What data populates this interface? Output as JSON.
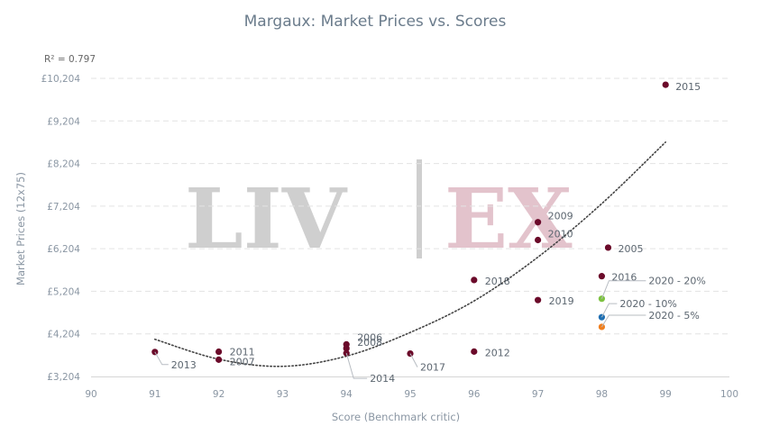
{
  "chart_data": {
    "type": "scatter",
    "title": "Margaux: Market Prices vs. Scores",
    "xlabel": "Score (Benchmark critic)",
    "ylabel": "Market Prices (12x75)",
    "annotation": "R² = 0.797",
    "watermark": {
      "left": "LIV",
      "right": "EX"
    },
    "xlim": [
      90,
      100
    ],
    "ylim": [
      3204,
      10204
    ],
    "xticks": [
      "90",
      "91",
      "92",
      "93",
      "94",
      "95",
      "96",
      "97",
      "98",
      "99",
      "100"
    ],
    "yticks": [
      "£3,204",
      "£4,204",
      "£5,204",
      "£6,204",
      "£7,204",
      "£8,204",
      "£9,204",
      "£10,204"
    ],
    "grid": true,
    "colors": {
      "point": "#6b0a2a",
      "trend": "#444444",
      "grid": "#e3e3e3",
      "watermark_left": "#cfcfcf",
      "watermark_right": "#e3c3cc"
    },
    "points": [
      {
        "label": "2013",
        "x": 91,
        "y": 3779,
        "color": "#6b0a2a"
      },
      {
        "label": "2011",
        "x": 92,
        "y": 3785,
        "color": "#6b0a2a"
      },
      {
        "label": "2007",
        "x": 92,
        "y": 3598,
        "color": "#6b0a2a"
      },
      {
        "label": "2006",
        "x": 94,
        "y": 3957,
        "color": "#6b0a2a"
      },
      {
        "label": "2008",
        "x": 94,
        "y": 3863,
        "color": "#6b0a2a"
      },
      {
        "label": "2014",
        "x": 94,
        "y": 3751,
        "color": "#6b0a2a"
      },
      {
        "label": "2017",
        "x": 95,
        "y": 3741,
        "color": "#6b0a2a"
      },
      {
        "label": "2018",
        "x": 96,
        "y": 5469,
        "color": "#6b0a2a"
      },
      {
        "label": "2012",
        "x": 96,
        "y": 3788,
        "color": "#6b0a2a"
      },
      {
        "label": "2009",
        "x": 97,
        "y": 6826,
        "color": "#6b0a2a"
      },
      {
        "label": "2010",
        "x": 97,
        "y": 6408,
        "color": "#6b0a2a"
      },
      {
        "label": "2019",
        "x": 97,
        "y": 4998,
        "color": "#6b0a2a"
      },
      {
        "label": "2005",
        "x": 98.1,
        "y": 6230,
        "color": "#6b0a2a"
      },
      {
        "label": "2016",
        "x": 98,
        "y": 5559,
        "color": "#6b0a2a"
      },
      {
        "label": "2020 - 20%",
        "x": 98,
        "y": 5029,
        "color": "#7dc241"
      },
      {
        "label": "2020 - 10%",
        "x": 98,
        "y": 4596,
        "color": "#1f6fb2"
      },
      {
        "label": "2020 - 5%",
        "x": 98,
        "y": 4368,
        "color": "#f07f1e"
      },
      {
        "label": "2015",
        "x": 99,
        "y": 10054,
        "color": "#6b0a2a"
      }
    ],
    "trendline": {
      "type": "polynomial",
      "x": [
        91,
        92,
        93,
        94,
        95,
        96,
        97,
        98,
        99
      ],
      "y": [
        4077,
        3609,
        3442,
        3681,
        4238,
        4978,
        6006,
        7262,
        8707
      ]
    }
  }
}
